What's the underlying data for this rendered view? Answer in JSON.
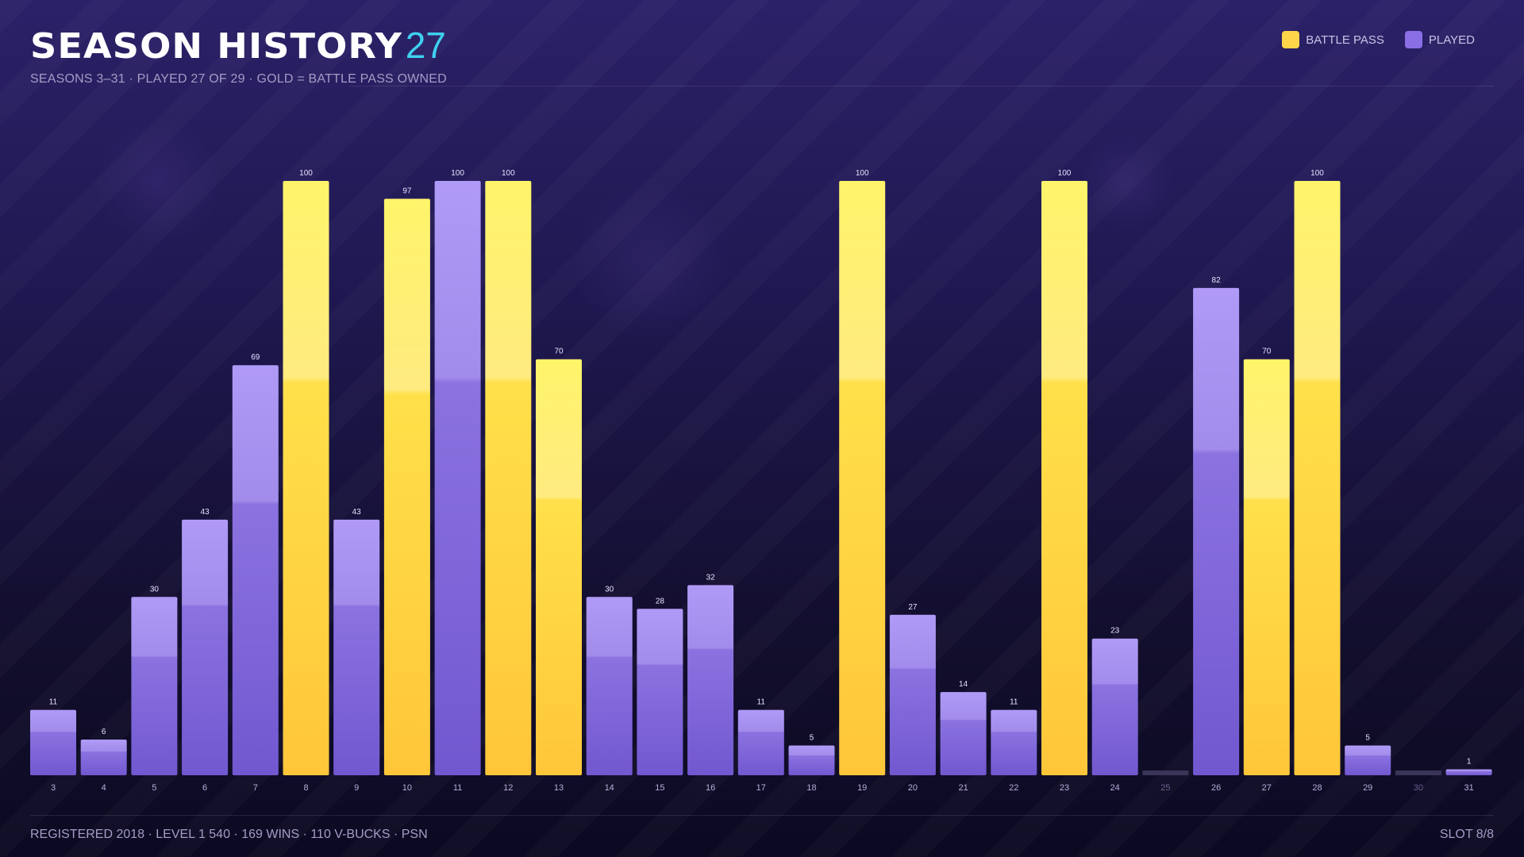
{
  "header": {
    "title": "SEASON HISTORY",
    "count": "27",
    "subtitle": "SEASONS 3–31  ·  PLAYED 27 OF 29  ·  GOLD = BATTLE PASS OWNED"
  },
  "legend": {
    "battle_pass_label": "BATTLE PASS",
    "played_label": "PLAYED"
  },
  "footer": {
    "left": "REGISTERED 2018  ·  LEVEL 1 540  ·  169 WINS  ·  110 V-BUCKS  ·  PSN",
    "right": "SLOT 8/8"
  },
  "colors": {
    "battle_pass": "#ffd54a",
    "played": "#8a6ee6",
    "accent": "#3fd0f0",
    "not_played": "#3a3458"
  },
  "chart_data": {
    "type": "bar",
    "title": "SEASON HISTORY",
    "xlabel": "",
    "ylabel": "",
    "ylim": [
      0,
      100
    ],
    "grid": false,
    "legend_position": "top-right",
    "categories": [
      "3",
      "4",
      "5",
      "6",
      "7",
      "8",
      "9",
      "10",
      "11",
      "12",
      "13",
      "14",
      "15",
      "16",
      "17",
      "18",
      "19",
      "20",
      "21",
      "22",
      "23",
      "24",
      "25",
      "26",
      "27",
      "28",
      "29",
      "30",
      "31"
    ],
    "values": [
      11,
      6,
      30,
      43,
      69,
      100,
      43,
      97,
      100,
      100,
      70,
      30,
      28,
      32,
      11,
      5,
      100,
      27,
      14,
      11,
      100,
      23,
      null,
      82,
      70,
      100,
      5,
      null,
      1
    ],
    "battle_pass": [
      false,
      false,
      false,
      false,
      false,
      true,
      false,
      true,
      false,
      true,
      true,
      false,
      false,
      false,
      false,
      false,
      true,
      false,
      false,
      false,
      true,
      false,
      false,
      false,
      true,
      true,
      false,
      false,
      false
    ],
    "played": [
      true,
      true,
      true,
      true,
      true,
      true,
      true,
      true,
      true,
      true,
      true,
      true,
      true,
      true,
      true,
      true,
      true,
      true,
      true,
      true,
      true,
      true,
      false,
      true,
      true,
      true,
      true,
      false,
      true
    ],
    "series": [
      {
        "name": "BATTLE PASS"
      },
      {
        "name": "PLAYED"
      }
    ]
  }
}
